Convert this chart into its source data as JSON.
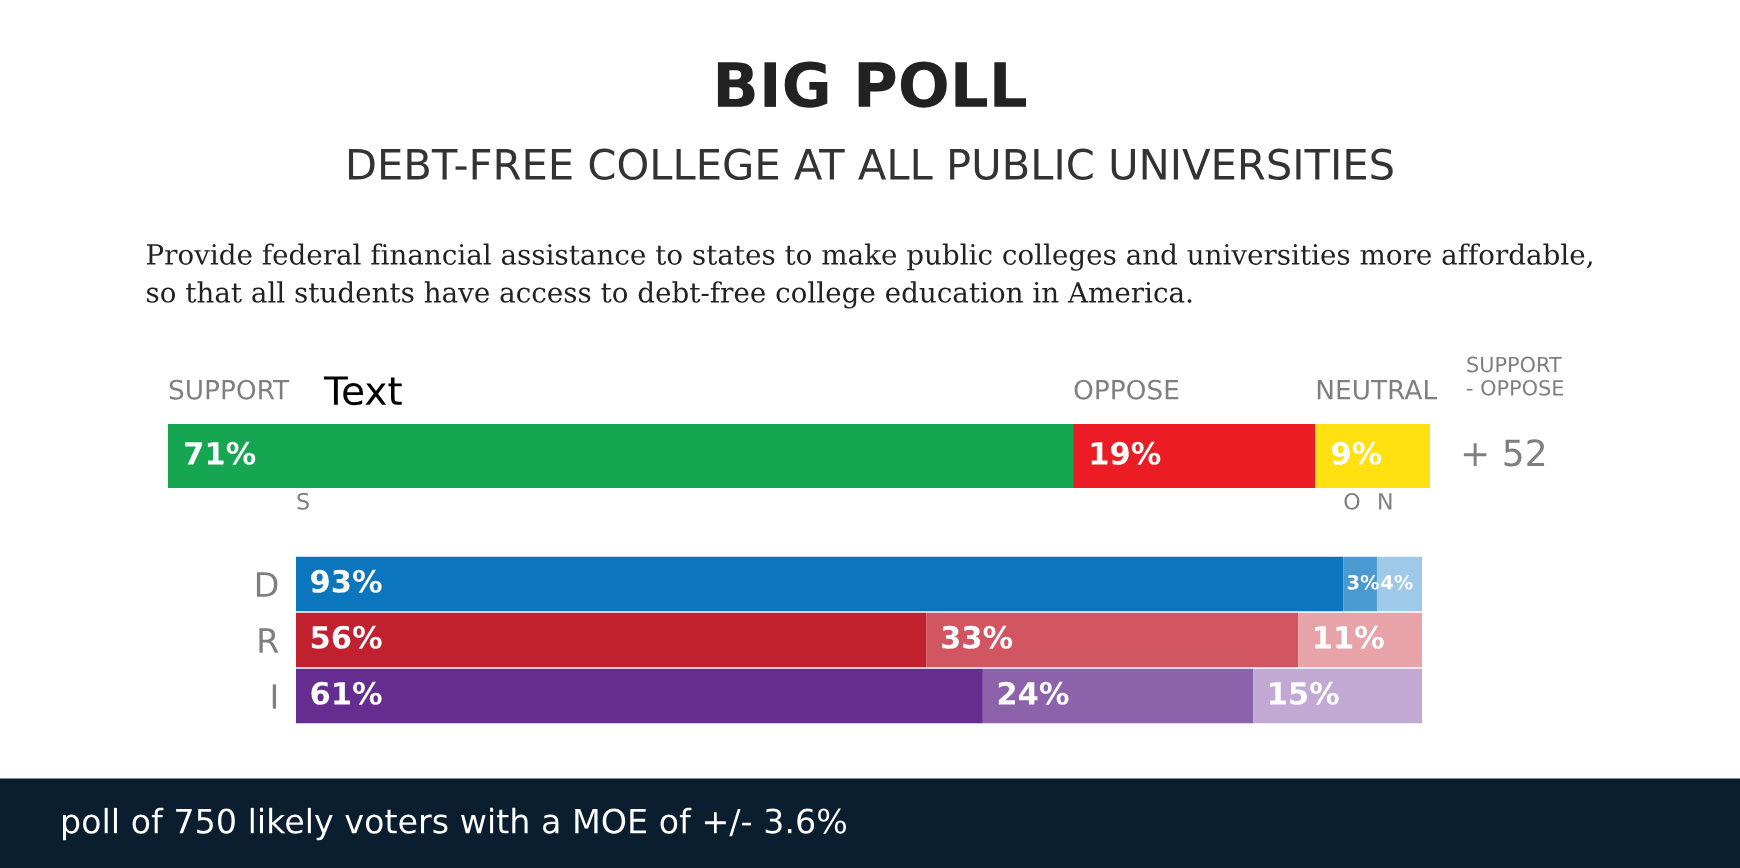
{
  "chart_data": [
    {
      "type": "bar",
      "orientation": "horizontal",
      "stacked": true,
      "title": "BIG POLL",
      "subtitle": "DEBT-FREE COLLEGE AT ALL PUBLIC UNIVERSITIES",
      "categories": [
        null
      ],
      "legend": false,
      "series": [
        {
          "name": "SUPPORT",
          "color": "#16a651",
          "values": [
            71
          ],
          "value_labels": [
            "71%"
          ]
        },
        {
          "name": "OPPOSE",
          "color": "#ec1c24",
          "values": [
            19
          ],
          "value_labels": [
            "19%"
          ]
        },
        {
          "name": "NEUTRAL",
          "color": "#ffe010",
          "values": [
            9
          ],
          "value_labels": [
            "9%"
          ]
        }
      ],
      "annotations": [
        "Provide federal financial assistance to states to make public colleges and universities more affordable,\nso that all students have access to debt-free college education in America.",
        "Text",
        "SUPPORT\n- OPPOSE",
        "+ 52"
      ]
    },
    {
      "type": "bar",
      "orientation": "horizontal",
      "stacked": true,
      "categories": [
        "D",
        "R",
        "I"
      ],
      "legend": false,
      "series": [
        {
          "name": "S",
          "colors": [
            "#0b75be",
            "#c1202f",
            "#652d90"
          ],
          "values": [
            93,
            56,
            61
          ],
          "value_labels": [
            "93%",
            "56%",
            "61%"
          ]
        },
        {
          "name": "O",
          "colors": [
            "#4a9ad2",
            "#d15661",
            "#8c62ab"
          ],
          "values": [
            3,
            33,
            24
          ],
          "value_labels": [
            "3%",
            "33%",
            "24%"
          ]
        },
        {
          "name": "N",
          "colors": [
            "#9ec9e8",
            "#e8a3a8",
            "#c2a9d4"
          ],
          "values": [
            4,
            11,
            15
          ],
          "value_labels": [
            "4%",
            "11%",
            "15%"
          ]
        }
      ],
      "annotations": [
        "poll of 750 likely voters with a MOE of +/- 3.6%"
      ]
    }
  ]
}
